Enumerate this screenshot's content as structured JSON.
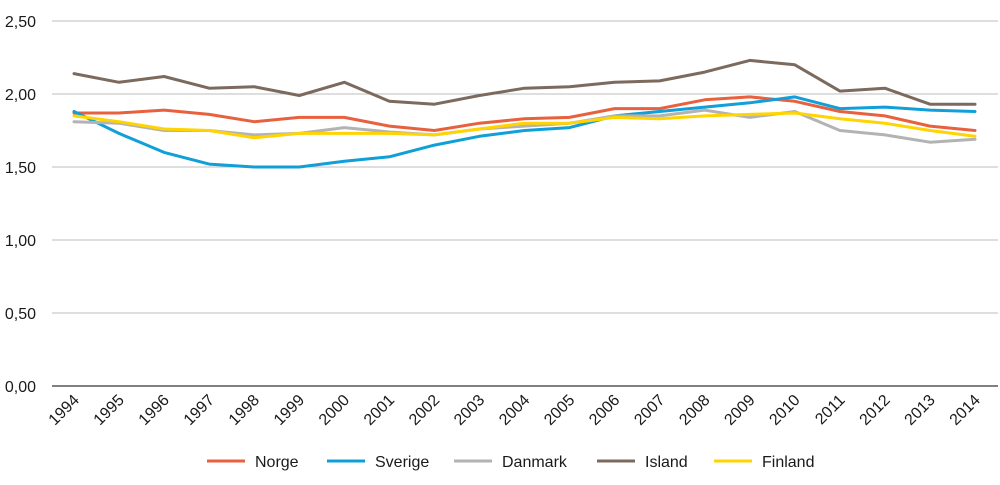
{
  "chart_data": {
    "type": "line",
    "title": "",
    "xlabel": "",
    "ylabel": "",
    "ylim": [
      0,
      2.5
    ],
    "y_ticks": [
      "0,00",
      "0,50",
      "1,00",
      "1,50",
      "2,00",
      "2,50"
    ],
    "y_tick_values": [
      0,
      0.5,
      1,
      1.5,
      2,
      2.5
    ],
    "grid": true,
    "legend_position": "bottom",
    "categories": [
      "1994",
      "1995",
      "1996",
      "1997",
      "1998",
      "1999",
      "2000",
      "2001",
      "2002",
      "2003",
      "2004",
      "2005",
      "2006",
      "2007",
      "2008",
      "2009",
      "2010",
      "2011",
      "2012",
      "2013",
      "2014"
    ],
    "series": [
      {
        "name": "Norge",
        "color": "#e8613f",
        "values": [
          1.87,
          1.87,
          1.89,
          1.86,
          1.81,
          1.84,
          1.84,
          1.78,
          1.75,
          1.8,
          1.83,
          1.84,
          1.9,
          1.9,
          1.96,
          1.98,
          1.95,
          1.88,
          1.85,
          1.78,
          1.75
        ]
      },
      {
        "name": "Sverige",
        "color": "#109fd8",
        "values": [
          1.88,
          1.73,
          1.6,
          1.52,
          1.5,
          1.5,
          1.54,
          1.57,
          1.65,
          1.71,
          1.75,
          1.77,
          1.85,
          1.88,
          1.91,
          1.94,
          1.98,
          1.9,
          1.91,
          1.89,
          1.88
        ]
      },
      {
        "name": "Danmark",
        "color": "#b3b3b3",
        "values": [
          1.81,
          1.8,
          1.75,
          1.75,
          1.72,
          1.73,
          1.77,
          1.74,
          1.72,
          1.76,
          1.78,
          1.8,
          1.85,
          1.85,
          1.89,
          1.84,
          1.88,
          1.75,
          1.72,
          1.67,
          1.69
        ]
      },
      {
        "name": "Island",
        "color": "#7b6a5d",
        "values": [
          2.14,
          2.08,
          2.12,
          2.04,
          2.05,
          1.99,
          2.08,
          1.95,
          1.93,
          1.99,
          2.04,
          2.05,
          2.08,
          2.09,
          2.15,
          2.23,
          2.2,
          2.02,
          2.04,
          1.93,
          1.93
        ]
      },
      {
        "name": "Finland",
        "color": "#ffd400",
        "values": [
          1.85,
          1.81,
          1.76,
          1.75,
          1.7,
          1.73,
          1.73,
          1.73,
          1.72,
          1.76,
          1.8,
          1.8,
          1.84,
          1.83,
          1.85,
          1.86,
          1.87,
          1.83,
          1.8,
          1.75,
          1.71
        ]
      }
    ]
  }
}
